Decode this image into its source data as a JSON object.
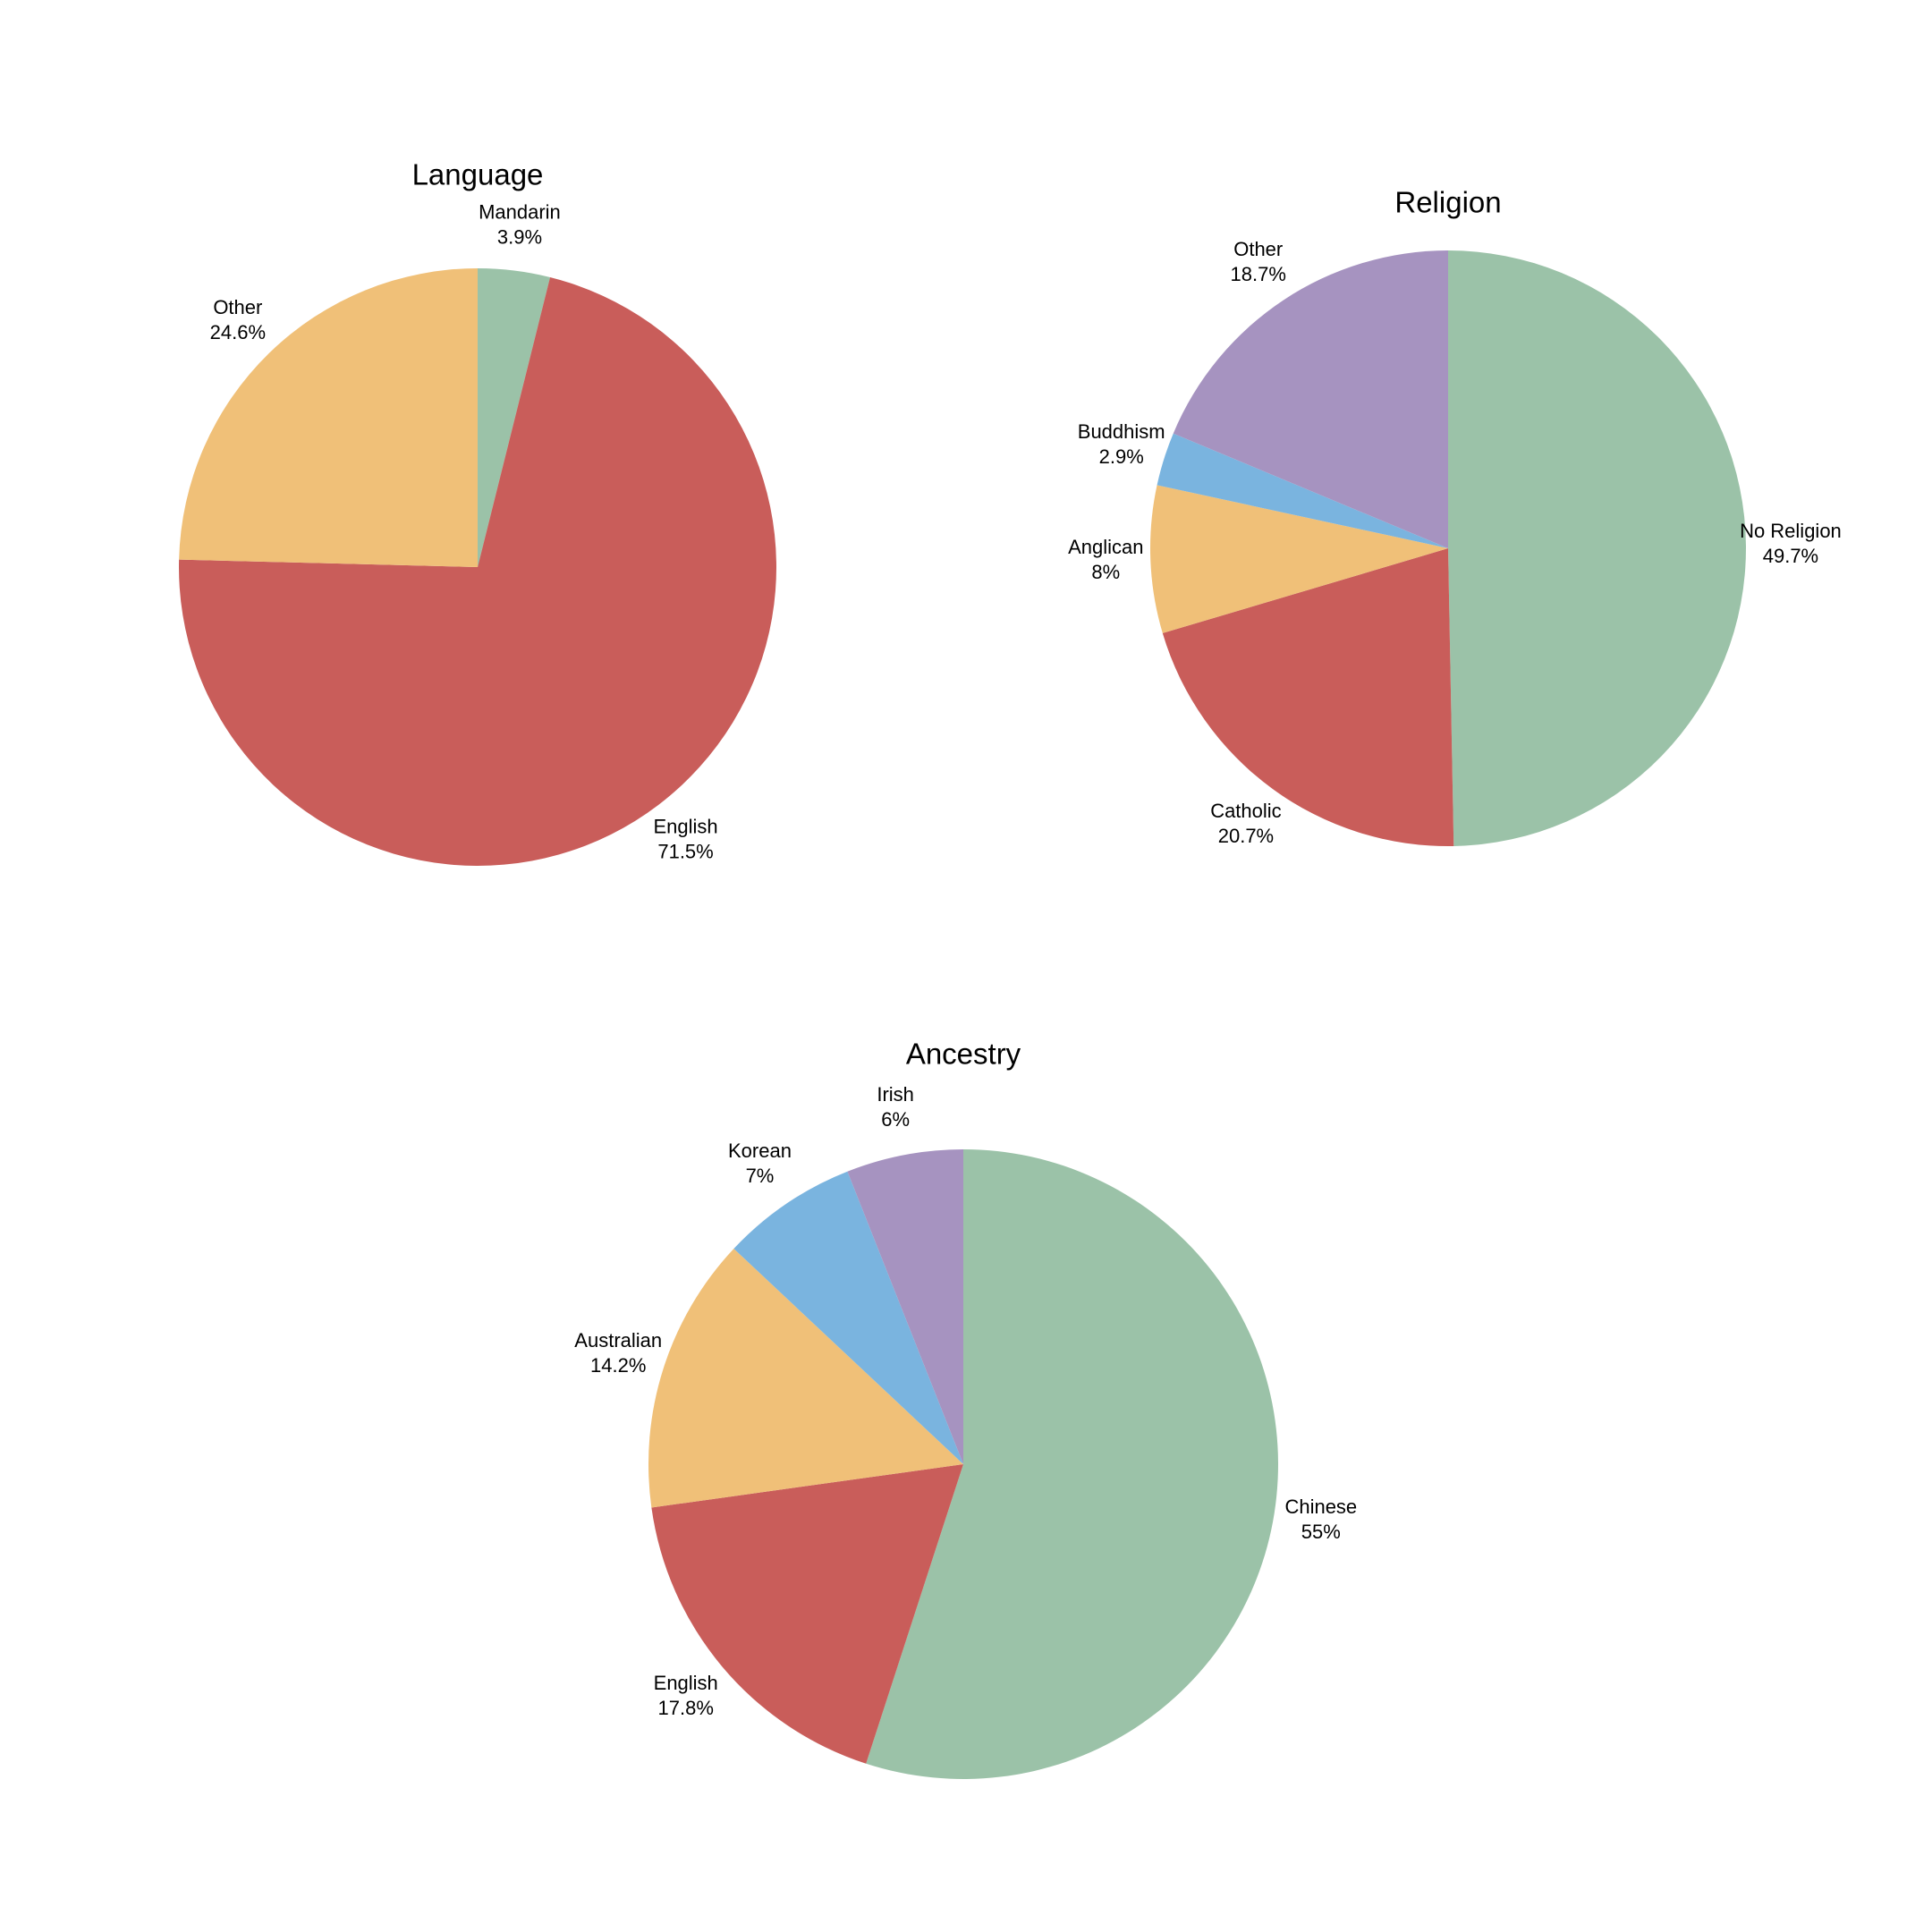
{
  "chart_data": [
    {
      "type": "pie",
      "title": "Language",
      "categories": [
        "Mandarin",
        "English",
        "Other"
      ],
      "values": [
        3.9,
        71.5,
        24.6
      ],
      "value_labels": [
        "3.9%",
        "71.5%",
        "24.6%"
      ],
      "colors": [
        "#9bc2a8",
        "#c95d5a",
        "#f0c078"
      ]
    },
    {
      "type": "pie",
      "title": "Religion",
      "categories": [
        "No Religion",
        "Catholic",
        "Anglican",
        "Buddhism",
        "Other"
      ],
      "values": [
        49.7,
        20.7,
        8,
        2.9,
        18.7
      ],
      "value_labels": [
        "49.7%",
        "20.7%",
        "8%",
        "2.9%",
        "18.7%"
      ],
      "colors": [
        "#9bc2a8",
        "#c95d5a",
        "#f0c078",
        "#7ab4df",
        "#a693c0"
      ]
    },
    {
      "type": "pie",
      "title": "Ancestry",
      "categories": [
        "Chinese",
        "English",
        "Australian",
        "Korean",
        "Irish"
      ],
      "values": [
        55,
        17.8,
        14.2,
        7,
        6
      ],
      "value_labels": [
        "55%",
        "17.8%",
        "14.2%",
        "7%",
        "6%"
      ],
      "colors": [
        "#9bc2a8",
        "#c95d5a",
        "#f0c078",
        "#7ab4df",
        "#a693c0"
      ]
    }
  ]
}
